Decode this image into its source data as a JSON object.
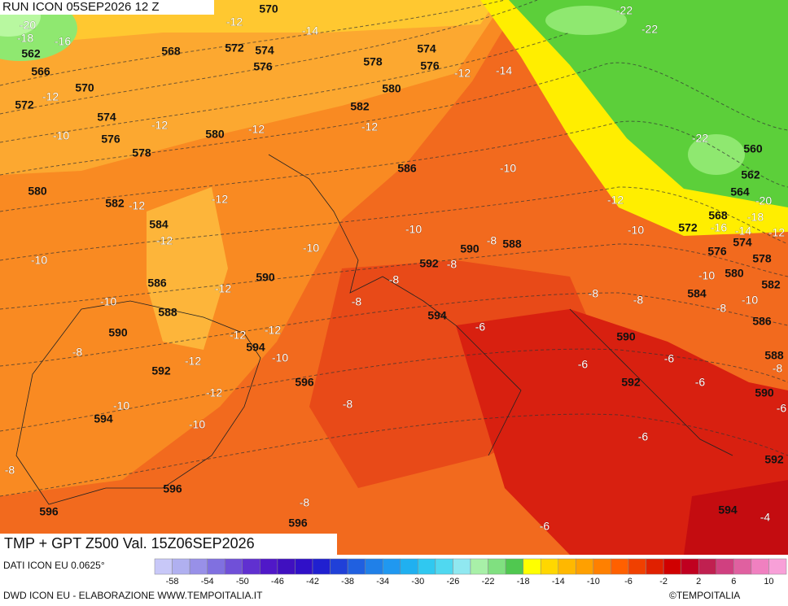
{
  "header": {
    "run": "RUN ICON 05SEP2026 12 Z"
  },
  "map": {
    "title": "TMP + GPT Z500 Val. 15Z06SEP2026",
    "geopotential_labels": [
      570,
      568,
      572,
      574,
      576,
      562,
      566,
      570,
      572,
      574,
      576,
      578,
      580,
      578,
      574,
      576,
      580,
      582,
      586,
      580,
      582,
      584,
      586,
      588,
      590,
      590,
      592,
      594,
      594,
      596,
      596,
      596,
      596,
      592,
      590,
      588,
      594,
      590,
      592,
      590,
      592,
      594,
      560,
      562,
      564,
      568,
      572,
      574,
      576,
      578,
      580,
      582,
      584,
      586,
      588
    ],
    "temperature_labels": [
      -20,
      -18,
      -16,
      -12,
      -14,
      -12,
      -10,
      -12,
      -12,
      -12,
      -14,
      -12,
      -22,
      -22,
      -22,
      -10,
      -12,
      -12,
      -12,
      -12,
      -10,
      -10,
      -10,
      -10,
      -16,
      -14,
      -12,
      -18,
      -20,
      -12,
      -8,
      -8,
      -8,
      -8,
      -10,
      -8,
      -8,
      -10,
      -10,
      -8,
      -12,
      -12,
      -12,
      -10,
      -8,
      -6,
      -6,
      -6,
      -6,
      -8,
      -12,
      -8,
      -10,
      -10,
      -6,
      -6,
      -8,
      -8,
      -6,
      -4
    ]
  },
  "legend": {
    "source": "DATI ICON EU 0.0625°",
    "ticks": [
      -58,
      -54,
      -50,
      -46,
      -42,
      -38,
      -34,
      -30,
      -26,
      -22,
      -18,
      -14,
      -10,
      -6,
      -2,
      2,
      6,
      10
    ],
    "colors": [
      "#c8c8f8",
      "#b0b0f0",
      "#9890e8",
      "#8070e0",
      "#7050d8",
      "#6030d0",
      "#5018c8",
      "#4010c0",
      "#3010c8",
      "#2020d0",
      "#2040d8",
      "#2060e0",
      "#2080e8",
      "#2098f0",
      "#20b0f0",
      "#30c8f0",
      "#50d8f0",
      "#90e8f0",
      "#a8f0a8",
      "#80e080",
      "#50c850",
      "#ffff00",
      "#ffd700",
      "#ffb800",
      "#ffa000",
      "#ff8000",
      "#ff6000",
      "#f04000",
      "#e02000",
      "#d00000",
      "#c00020",
      "#c02050",
      "#d04080",
      "#e060a0",
      "#f080c0",
      "#f8a0d8"
    ]
  },
  "footer": {
    "credit": "DWD ICON EU - ELABORAZIONE WWW.TEMPOITALIA.IT",
    "brand": "©TEMPOITALIA"
  }
}
